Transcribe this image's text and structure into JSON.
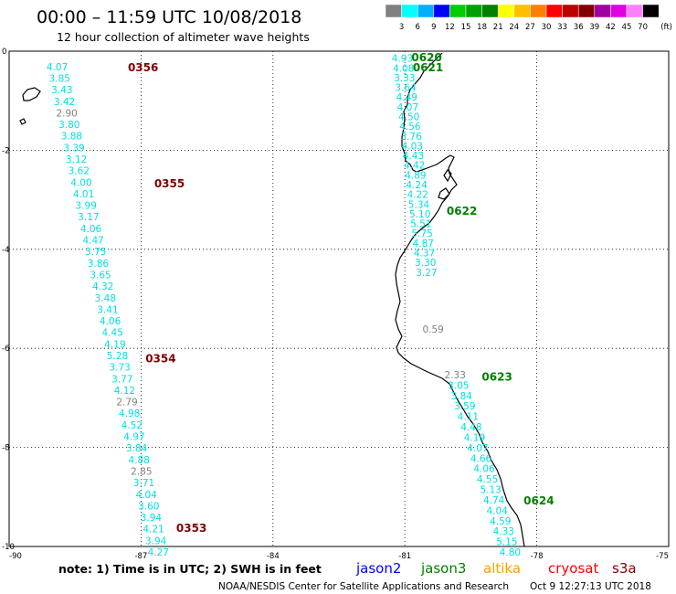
{
  "header": {
    "title": "00:00 – 11:59 UTC 10/08/2018",
    "subtitle": "12 hour collection of altimeter wave heights"
  },
  "scale": {
    "unit": "(ft)",
    "labels": [
      "3",
      "6",
      "9",
      "12",
      "15",
      "18",
      "21",
      "24",
      "27",
      "30",
      "33",
      "36",
      "39",
      "42",
      "45",
      "70"
    ],
    "colors": [
      "#808080",
      "#00ffff",
      "#00b0ff",
      "#0000ff",
      "#00cc00",
      "#00a000",
      "#008000",
      "#ffff00",
      "#ffc000",
      "#ff8000",
      "#ff0000",
      "#c00000",
      "#800000",
      "#a000a0",
      "#e000e0",
      "#ff80ff",
      "#000000"
    ]
  },
  "axes": {
    "lon_ticks": [
      -90,
      -87,
      -84,
      -81,
      -78,
      -75
    ],
    "lat_ticks": [
      0,
      -2,
      -4,
      -6,
      -8,
      -10
    ],
    "lon_range": [
      -90,
      -75
    ],
    "lat_range": [
      0,
      -10
    ]
  },
  "passes": [
    {
      "time": "0356",
      "color": "#800000",
      "lon": -87.3,
      "lat": -0.2
    },
    {
      "time": "0355",
      "color": "#800000",
      "lon": -86.7,
      "lat": -2.55
    },
    {
      "time": "0354",
      "color": "#800000",
      "lon": -86.9,
      "lat": -6.08
    },
    {
      "time": "0353",
      "color": "#800000",
      "lon": -86.2,
      "lat": -9.5
    },
    {
      "time": "0620",
      "color": "#008000",
      "lon": -80.85,
      "lat": 0.0
    },
    {
      "time": "0621",
      "color": "#008000",
      "lon": -80.82,
      "lat": -0.2
    },
    {
      "time": "0622",
      "color": "#008000",
      "lon": -80.05,
      "lat": -3.1
    },
    {
      "time": "0623",
      "color": "#008000",
      "lon": -79.25,
      "lat": -6.45
    },
    {
      "time": "0624",
      "color": "#008000",
      "lon": -78.3,
      "lat": -8.95
    }
  ],
  "tracks": [
    {
      "name": "s3a-west",
      "start": [
        -89.15,
        -0.2
      ],
      "end": [
        -86.85,
        -10.0
      ],
      "values": [
        "4.07",
        "3.85",
        "3.43",
        "3.42",
        "2.90",
        "3.80",
        "3.88",
        "3.39",
        "3.12",
        "3.62",
        "4.00",
        "4.01",
        "3.99",
        "3.17",
        "4.06",
        "4.47",
        "3.75",
        "3.86",
        "3.65",
        "4.32",
        "3.48",
        "3.41",
        "4.06",
        "4.45",
        "4.19",
        "5.28",
        "3.73",
        "3.77",
        "4.12",
        "2.79",
        "4.98",
        "4.52",
        "4.97",
        "3.84",
        "4.88",
        "2.85",
        "3.71",
        "4.04",
        "3.60",
        "3.94",
        "4.21",
        "3.94",
        "4.27"
      ],
      "colors": {
        "2.90": "#808080",
        "2.79": "#808080",
        "2.85": "#808080"
      }
    },
    {
      "name": "jason3-coast-north",
      "start": [
        -81.3,
        -0.03
      ],
      "end": [
        -80.75,
        -4.35
      ],
      "values": [
        "4.93",
        "4.08",
        "3.33",
        "3.64",
        "4.49",
        "4.07",
        "4.50",
        "4.56",
        "3.76",
        "4.03",
        "4.43",
        "4.42",
        "4.89",
        "4.24",
        "4.22",
        "5.34",
        "5.10",
        "5.51",
        "5.75",
        "4.87",
        "4.37",
        "3.30",
        "3.27"
      ],
      "colors": {}
    },
    {
      "name": "jason3-coast-south",
      "start": [
        -80.1,
        -6.42
      ],
      "end": [
        -78.85,
        -10.0
      ],
      "values": [
        "2.33",
        "3.05",
        "3.84",
        "3.59",
        "4.11",
        "4.48",
        "4.19",
        "4.07",
        "4.66",
        "4.06",
        "4.55",
        "5.13",
        "4.74",
        "4.04",
        "4.59",
        "4.33",
        "5.15",
        "4.80"
      ],
      "colors": {
        "2.33": "#808080"
      }
    }
  ],
  "isolated": [
    {
      "value": "0.59",
      "lon": -80.6,
      "lat": -5.5,
      "color": "#808080"
    }
  ],
  "footer": {
    "note": "note:  1) Time is in UTC;  2) SWH is in feet",
    "legend": [
      {
        "label": "jason2",
        "color": "#0000ff"
      },
      {
        "label": "jason3",
        "color": "#008000"
      },
      {
        "label": "altika",
        "color": "#ffa000"
      },
      {
        "label": "cryosat",
        "color": "#ff0000"
      },
      {
        "label": "s3a",
        "color": "#800000"
      }
    ],
    "credit": "NOAA/NESDIS Center for Satellite Applications and Research",
    "timestamp": "Oct  9 12:27:13 UTC 2018"
  }
}
